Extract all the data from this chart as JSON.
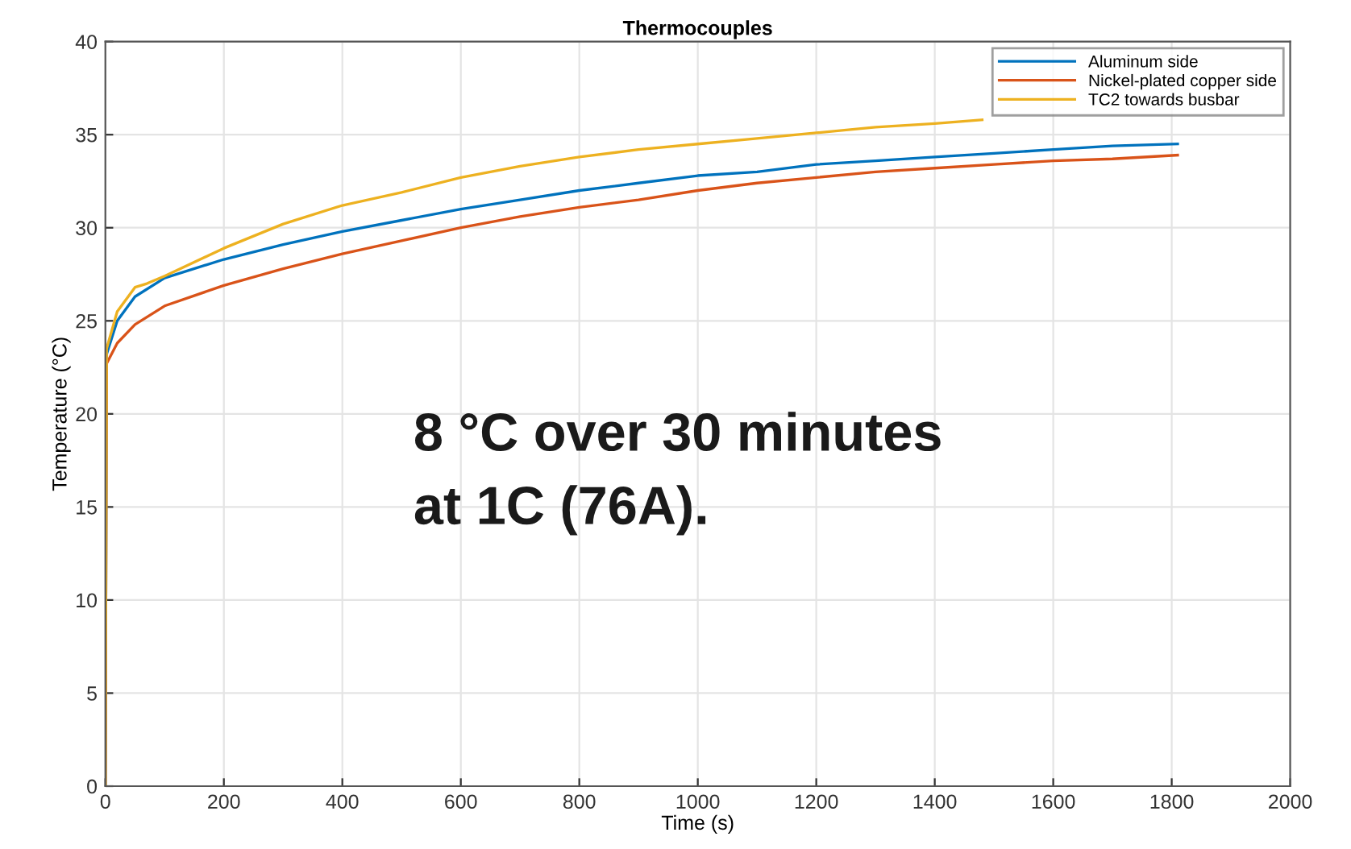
{
  "chart_data": {
    "type": "line",
    "title": "Thermocouples",
    "xlabel": "Time (s)",
    "ylabel": "Temperature (°C)",
    "annotations": [
      "8 °C over 30 minutes\nat 1C (76A)."
    ],
    "series": [
      {
        "name": "Aluminum side",
        "color": "#0072bd",
        "x": [
          0,
          2,
          20,
          50,
          100,
          200,
          300,
          400,
          500,
          600,
          700,
          800,
          900,
          1000,
          1100,
          1200,
          1300,
          1400,
          1500,
          1600,
          1700,
          1810
        ],
        "values": [
          0,
          23.2,
          25,
          26.3,
          27.3,
          28.3,
          29.1,
          29.8,
          30.4,
          31.0,
          31.5,
          32.0,
          32.4,
          32.8,
          33.0,
          33.4,
          33.6,
          33.8,
          34.0,
          34.2,
          34.4,
          34.5
        ]
      },
      {
        "name": "Nickel-plated copper side",
        "color": "#d95319",
        "x": [
          0,
          2,
          20,
          50,
          100,
          200,
          300,
          400,
          500,
          600,
          700,
          800,
          900,
          1000,
          1100,
          1200,
          1300,
          1400,
          1500,
          1600,
          1700,
          1810
        ],
        "values": [
          0,
          22.7,
          23.8,
          24.8,
          25.8,
          26.9,
          27.8,
          28.6,
          29.3,
          30.0,
          30.6,
          31.1,
          31.5,
          32.0,
          32.4,
          32.7,
          33.0,
          33.2,
          33.4,
          33.6,
          33.7,
          33.9
        ]
      },
      {
        "name": "TC2 towards busbar",
        "color": "#edb120",
        "x": [
          0,
          2,
          20,
          50,
          70,
          100,
          200,
          300,
          400,
          500,
          600,
          700,
          800,
          900,
          1000,
          1100,
          1200,
          1300,
          1400,
          1480
        ],
        "values": [
          0,
          23.5,
          25.5,
          26.8,
          27.0,
          27.4,
          28.9,
          30.2,
          31.2,
          31.9,
          32.7,
          33.3,
          33.8,
          34.2,
          34.5,
          34.8,
          35.1,
          35.4,
          35.6,
          35.8
        ]
      }
    ],
    "xlim": [
      0,
      2000
    ],
    "xticks": [
      0,
      200,
      400,
      600,
      800,
      1000,
      1200,
      1400,
      1600,
      1800,
      2000
    ],
    "ylim": [
      0,
      40
    ],
    "yticks": [
      0,
      5,
      10,
      15,
      20,
      25,
      30,
      35,
      40
    ],
    "grid": true,
    "legend": "top right",
    "line_style": "solid",
    "marker": "none"
  }
}
